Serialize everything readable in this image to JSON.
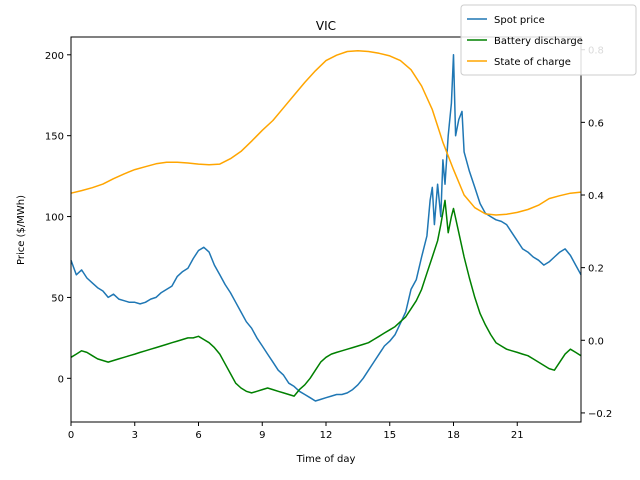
{
  "chart_data": {
    "type": "line",
    "title": "VIC",
    "xlabel": "Time of day",
    "ylabel": "Price ($/MWh)",
    "y2label": "",
    "xlim": [
      0,
      24
    ],
    "ylim": [
      -27,
      211
    ],
    "y2lim": [
      -0.225,
      0.835
    ],
    "xticks": [
      0,
      3,
      6,
      9,
      12,
      15,
      18,
      21
    ],
    "xtick_labels": [
      "0",
      "3",
      "6",
      "9",
      "12",
      "15",
      "18",
      "21"
    ],
    "yticks": [
      0,
      50,
      100,
      150,
      200
    ],
    "ytick_labels": [
      "0",
      "50",
      "100",
      "150",
      "200"
    ],
    "y2ticks": [
      -0.2,
      0.0,
      0.2,
      0.4,
      0.6,
      0.8
    ],
    "y2tick_labels": [
      "−0.2",
      "0.0",
      "0.2",
      "0.4",
      "0.6",
      "0.8"
    ],
    "grid": false,
    "legend_position": "top-right",
    "series": [
      {
        "name": "Spot price",
        "axis": "left",
        "color": "#1f77b4",
        "x": [
          0,
          0.25,
          0.5,
          0.75,
          1,
          1.25,
          1.5,
          1.75,
          2,
          2.25,
          2.5,
          2.75,
          3,
          3.25,
          3.5,
          3.75,
          4,
          4.25,
          4.5,
          4.75,
          5,
          5.25,
          5.5,
          5.75,
          6,
          6.25,
          6.5,
          6.75,
          7,
          7.25,
          7.5,
          7.75,
          8,
          8.25,
          8.5,
          8.75,
          9,
          9.25,
          9.5,
          9.75,
          10,
          10.25,
          10.5,
          10.75,
          11,
          11.25,
          11.5,
          11.75,
          12,
          12.25,
          12.5,
          12.75,
          13,
          13.25,
          13.5,
          13.75,
          14,
          14.25,
          14.5,
          14.75,
          15,
          15.25,
          15.5,
          15.75,
          16,
          16.25,
          16.5,
          16.75,
          16.9,
          17,
          17.1,
          17.25,
          17.4,
          17.5,
          17.6,
          17.75,
          17.9,
          18,
          18.1,
          18.25,
          18.4,
          18.5,
          18.75,
          19,
          19.25,
          19.5,
          19.75,
          20,
          20.25,
          20.5,
          20.75,
          21,
          21.25,
          21.5,
          21.75,
          22,
          22.25,
          22.5,
          22.75,
          23,
          23.25,
          23.5,
          23.75,
          24
        ],
        "values": [
          73,
          64,
          67,
          62,
          59,
          56,
          54,
          50,
          52,
          49,
          48,
          47,
          47,
          46,
          47,
          49,
          50,
          53,
          55,
          57,
          63,
          66,
          68,
          74,
          79,
          81,
          78,
          70,
          64,
          58,
          53,
          47,
          41,
          35,
          31,
          25,
          20,
          15,
          10,
          5,
          2,
          -3,
          -5,
          -8,
          -10,
          -12,
          -14,
          -13,
          -12,
          -11,
          -10,
          -10,
          -9,
          -7,
          -4,
          0,
          5,
          10,
          15,
          20,
          23,
          27,
          34,
          41,
          55,
          61,
          75,
          88,
          110,
          118,
          95,
          120,
          100,
          135,
          120,
          150,
          170,
          200,
          150,
          160,
          165,
          140,
          128,
          118,
          108,
          102,
          100,
          98,
          97,
          95,
          90,
          85,
          80,
          78,
          75,
          73,
          70,
          72,
          75,
          78,
          80,
          76,
          70,
          64
        ]
      },
      {
        "name": "Battery discharge",
        "axis": "left",
        "color": "#008000",
        "x": [
          0,
          0.25,
          0.5,
          0.75,
          1,
          1.25,
          1.5,
          1.75,
          2,
          2.25,
          2.5,
          2.75,
          3,
          3.25,
          3.5,
          3.75,
          4,
          4.25,
          4.5,
          4.75,
          5,
          5.25,
          5.5,
          5.75,
          6,
          6.25,
          6.5,
          6.75,
          7,
          7.25,
          7.5,
          7.75,
          8,
          8.25,
          8.5,
          8.75,
          9,
          9.25,
          9.5,
          9.75,
          10,
          10.25,
          10.5,
          10.75,
          11,
          11.25,
          11.5,
          11.75,
          12,
          12.25,
          12.5,
          12.75,
          13,
          13.25,
          13.5,
          13.75,
          14,
          14.25,
          14.5,
          14.75,
          15,
          15.25,
          15.5,
          15.75,
          16,
          16.25,
          16.5,
          16.75,
          17,
          17.25,
          17.4,
          17.6,
          17.75,
          17.9,
          18,
          18.25,
          18.5,
          18.75,
          19,
          19.25,
          19.5,
          19.75,
          20,
          20.25,
          20.5,
          20.75,
          21,
          21.25,
          21.5,
          21.75,
          22,
          22.25,
          22.5,
          22.75,
          23,
          23.25,
          23.5,
          23.75,
          24
        ],
        "values": [
          13,
          15,
          17,
          16,
          14,
          12,
          11,
          10,
          11,
          12,
          13,
          14,
          15,
          16,
          17,
          18,
          19,
          20,
          21,
          22,
          23,
          24,
          25,
          25,
          26,
          24,
          22,
          19,
          15,
          9,
          3,
          -3,
          -6,
          -8,
          -9,
          -8,
          -7,
          -6,
          -7,
          -8,
          -9,
          -10,
          -11,
          -7,
          -4,
          0,
          5,
          10,
          13,
          15,
          16,
          17,
          18,
          19,
          20,
          21,
          22,
          24,
          26,
          28,
          30,
          32,
          35,
          38,
          43,
          48,
          55,
          65,
          75,
          85,
          95,
          110,
          90,
          100,
          105,
          90,
          75,
          62,
          50,
          40,
          33,
          27,
          22,
          20,
          18,
          17,
          16,
          15,
          14,
          12,
          10,
          8,
          6,
          5,
          10,
          15,
          18,
          16,
          14
        ]
      },
      {
        "name": "State of charge",
        "axis": "right",
        "color": "#ffa500",
        "x": [
          0,
          0.5,
          1,
          1.5,
          2,
          2.5,
          3,
          3.5,
          4,
          4.5,
          5,
          5.5,
          6,
          6.5,
          7,
          7.5,
          8,
          8.5,
          9,
          9.5,
          10,
          10.5,
          11,
          11.5,
          12,
          12.5,
          13,
          13.5,
          14,
          14.5,
          15,
          15.5,
          16,
          16.5,
          17,
          17.5,
          18,
          18.5,
          19,
          19.5,
          20,
          20.5,
          21,
          21.5,
          22,
          22.5,
          23,
          23.5,
          24
        ],
        "values": [
          0.405,
          0.412,
          0.42,
          0.43,
          0.445,
          0.458,
          0.47,
          0.478,
          0.486,
          0.49,
          0.49,
          0.488,
          0.485,
          0.483,
          0.485,
          0.5,
          0.52,
          0.548,
          0.578,
          0.605,
          0.64,
          0.675,
          0.71,
          0.742,
          0.77,
          0.785,
          0.795,
          0.797,
          0.795,
          0.79,
          0.783,
          0.77,
          0.745,
          0.7,
          0.635,
          0.545,
          0.47,
          0.4,
          0.365,
          0.348,
          0.345,
          0.347,
          0.352,
          0.36,
          0.372,
          0.39,
          0.398,
          0.405,
          0.408
        ]
      }
    ]
  }
}
